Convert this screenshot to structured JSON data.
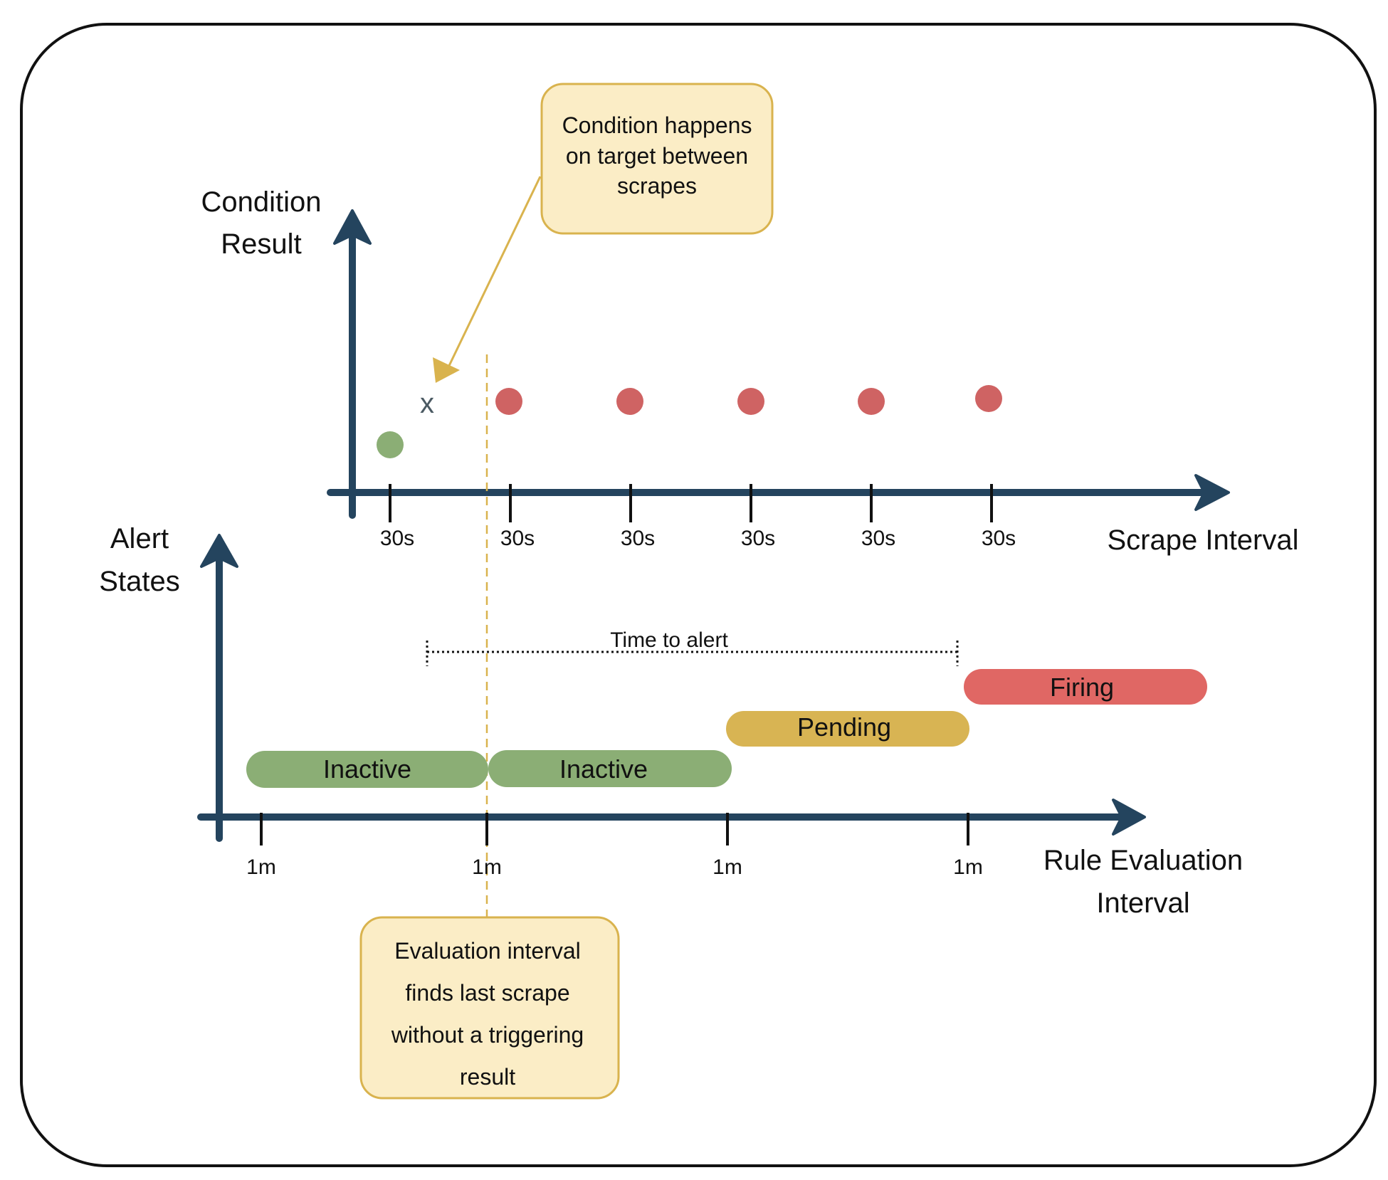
{
  "colors": {
    "axis": "#24445e",
    "frame": "#111111",
    "inactive": "#8bae75",
    "pending": "#d8b453",
    "firing": "#e06764",
    "point_ok": "#8bae75",
    "point_fail": "#cf6363",
    "callout_fill": "#fbedc6",
    "callout_stroke": "#d9b34e",
    "guide": "#d9b34e"
  },
  "top_chart": {
    "y_axis_title_line1": "Condition",
    "y_axis_title_line2": "Result",
    "x_axis_title": "Scrape Interval",
    "tick_labels": [
      "30s",
      "30s",
      "30s",
      "30s",
      "30s",
      "30s"
    ],
    "marker_label": "x"
  },
  "bottom_chart": {
    "y_axis_title_line1": "Alert",
    "y_axis_title_line2": "States",
    "x_axis_title_line1": "Rule Evaluation",
    "x_axis_title_line2": "Interval",
    "tick_labels": [
      "1m",
      "1m",
      "1m",
      "1m"
    ],
    "time_to_alert_label": "Time to alert",
    "states": [
      {
        "label": "Inactive",
        "status": "inactive"
      },
      {
        "label": "Inactive",
        "status": "inactive"
      },
      {
        "label": "Pending",
        "status": "pending"
      },
      {
        "label": "Firing",
        "status": "firing"
      }
    ]
  },
  "callouts": {
    "top": {
      "lines": [
        "Condition happens",
        "on target between",
        "scrapes"
      ]
    },
    "bottom": {
      "lines": [
        "Evaluation interval",
        "finds last scrape",
        "without a triggering",
        "result"
      ]
    }
  }
}
